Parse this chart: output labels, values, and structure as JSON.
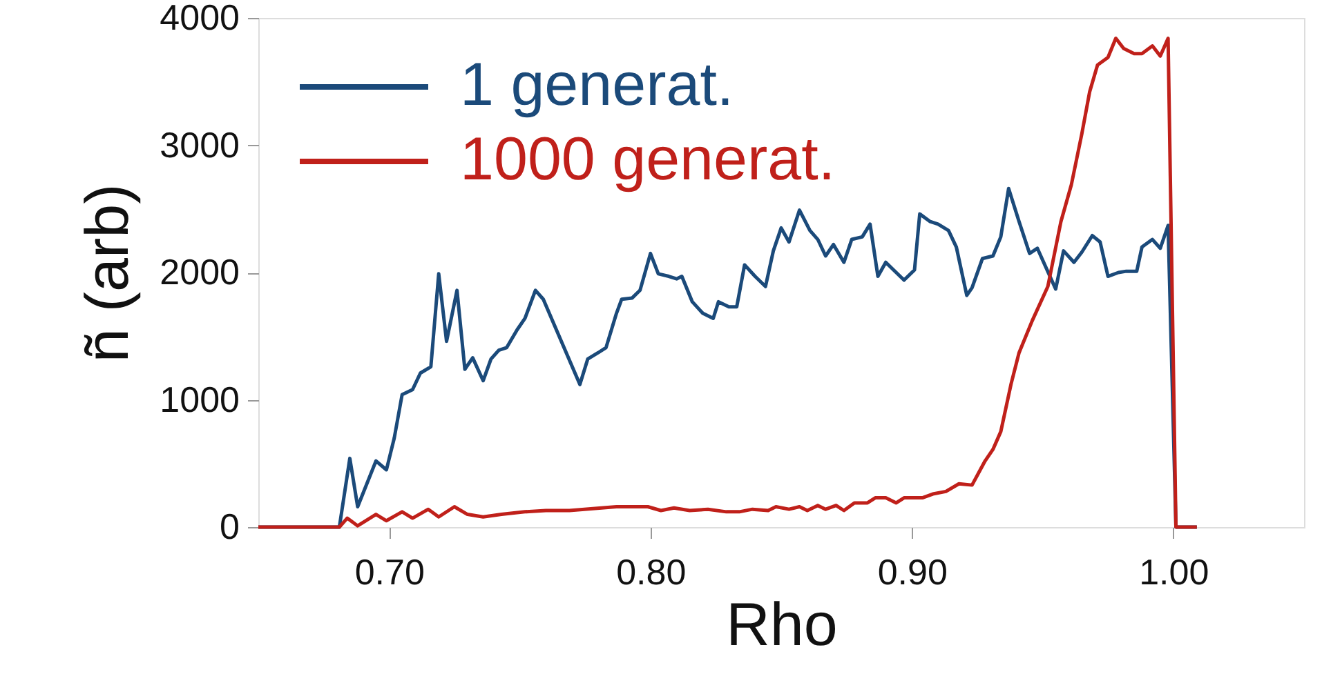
{
  "chart_data": {
    "type": "line",
    "xlabel": "Rho",
    "ylabel": "ñ (arb)",
    "xlim": [
      0.65,
      1.05
    ],
    "xticks": [
      {
        "value": 0.7,
        "label": "0.70"
      },
      {
        "value": 0.8,
        "label": "0.80"
      },
      {
        "value": 0.9,
        "label": "0.90"
      },
      {
        "value": 1.0,
        "label": "1.00"
      }
    ],
    "ylim": [
      0,
      4000
    ],
    "yticks": [
      0,
      1000,
      2000,
      3000,
      4000
    ],
    "grid": false,
    "legend": "top left",
    "marker": "none",
    "line_style": "solid",
    "series": [
      {
        "name": "1 generat.",
        "color": "#1b4a7a",
        "x": [
          0.65,
          0.681,
          0.685,
          0.688,
          0.695,
          0.699,
          0.702,
          0.705,
          0.709,
          0.712,
          0.716,
          0.719,
          0.722,
          0.726,
          0.729,
          0.732,
          0.736,
          0.739,
          0.742,
          0.745,
          0.749,
          0.752,
          0.756,
          0.759,
          0.773,
          0.776,
          0.78,
          0.783,
          0.787,
          0.789,
          0.793,
          0.796,
          0.8,
          0.803,
          0.807,
          0.81,
          0.812,
          0.816,
          0.82,
          0.824,
          0.826,
          0.83,
          0.833,
          0.836,
          0.84,
          0.844,
          0.847,
          0.85,
          0.853,
          0.857,
          0.861,
          0.864,
          0.867,
          0.87,
          0.874,
          0.877,
          0.881,
          0.884,
          0.887,
          0.89,
          0.894,
          0.897,
          0.901,
          0.903,
          0.907,
          0.91,
          0.914,
          0.917,
          0.921,
          0.923,
          0.927,
          0.931,
          0.934,
          0.937,
          0.941,
          0.945,
          0.948,
          0.955,
          0.958,
          0.962,
          0.965,
          0.969,
          0.972,
          0.975,
          0.979,
          0.982,
          0.986,
          0.988,
          0.992,
          0.995,
          0.998,
          1.001,
          1.009
        ],
        "values": [
          0,
          0,
          540,
          160,
          520,
          450,
          700,
          1040,
          1080,
          1210,
          1260,
          1990,
          1460,
          1860,
          1240,
          1330,
          1150,
          1320,
          1390,
          1410,
          1550,
          1640,
          1860,
          1790,
          1120,
          1320,
          1370,
          1410,
          1680,
          1790,
          1800,
          1860,
          2150,
          1990,
          1970,
          1950,
          1970,
          1770,
          1680,
          1640,
          1770,
          1730,
          1730,
          2060,
          1970,
          1890,
          2170,
          2350,
          2240,
          2490,
          2330,
          2260,
          2130,
          2220,
          2080,
          2260,
          2280,
          2380,
          1970,
          2080,
          2000,
          1940,
          2020,
          2460,
          2400,
          2380,
          2330,
          2200,
          1820,
          1880,
          2110,
          2130,
          2280,
          2660,
          2400,
          2150,
          2190,
          1870,
          2170,
          2080,
          2160,
          2290,
          2240,
          1970,
          2000,
          2010,
          2010,
          2200,
          2260,
          2190,
          2370,
          0,
          0
        ]
      },
      {
        "name": "1000 generat.",
        "color": "#c0201a",
        "x": [
          0.65,
          0.681,
          0.684,
          0.688,
          0.695,
          0.699,
          0.705,
          0.709,
          0.715,
          0.719,
          0.725,
          0.73,
          0.736,
          0.743,
          0.752,
          0.76,
          0.769,
          0.787,
          0.799,
          0.804,
          0.809,
          0.815,
          0.822,
          0.829,
          0.834,
          0.839,
          0.845,
          0.848,
          0.853,
          0.857,
          0.86,
          0.864,
          0.867,
          0.871,
          0.874,
          0.878,
          0.883,
          0.886,
          0.89,
          0.894,
          0.897,
          0.904,
          0.908,
          0.913,
          0.918,
          0.923,
          0.928,
          0.931,
          0.934,
          0.938,
          0.941,
          0.946,
          0.952,
          0.957,
          0.961,
          0.965,
          0.968,
          0.971,
          0.975,
          0.978,
          0.981,
          0.985,
          0.988,
          0.992,
          0.995,
          0.998,
          1.001,
          1.009
        ],
        "values": [
          0,
          0,
          70,
          10,
          100,
          50,
          120,
          70,
          140,
          80,
          160,
          100,
          80,
          100,
          120,
          130,
          130,
          160,
          160,
          130,
          150,
          130,
          140,
          120,
          120,
          140,
          130,
          160,
          140,
          160,
          130,
          170,
          140,
          170,
          130,
          190,
          190,
          230,
          230,
          190,
          230,
          230,
          260,
          280,
          340,
          330,
          520,
          610,
          750,
          1130,
          1370,
          1620,
          1890,
          2400,
          2690,
          3090,
          3420,
          3630,
          3690,
          3840,
          3760,
          3720,
          3720,
          3780,
          3700,
          3840,
          0,
          0
        ]
      }
    ]
  }
}
